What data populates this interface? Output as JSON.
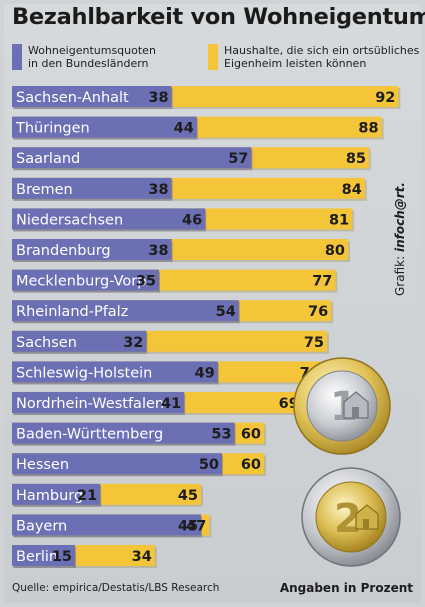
{
  "colors": {
    "blue": "#6b6fb4",
    "yellow": "#f4c538",
    "background": "#cfd3d6"
  },
  "title": "Bezahlbarkeit von Wohneigentum",
  "legend": [
    {
      "label": "Wohneigentumsquoten\nin den Bundesländern",
      "color": "#6b6fb4"
    },
    {
      "label": "Haushalte, die sich ein ortsübliches\nEigenheim leisten können",
      "color": "#f4c538"
    }
  ],
  "credit": {
    "prefix": "Grafik: ",
    "name": "infoch@rt."
  },
  "source": "Quelle: empirica/Destatis/LBS Research",
  "note": "Angaben in Prozent",
  "coins": {
    "one_label": "1",
    "two_label": "2"
  },
  "chart_data": {
    "type": "bar",
    "title": "Bezahlbarkeit von Wohneigentum",
    "categories": [
      "Sachsen-Anhalt",
      "Thüringen",
      "Saarland",
      "Bremen",
      "Niedersachsen",
      "Brandenburg",
      "Mecklenburg-Vorp.",
      "Rheinland-Pfalz",
      "Sachsen",
      "Schleswig-Holstein",
      "Nordrhein-Westfalen",
      "Baden-Württemberg",
      "Hessen",
      "Hamburg",
      "Bayern",
      "Berlin"
    ],
    "series": [
      {
        "name": "Wohneigentumsquoten in den Bundesländern",
        "values": [
          38,
          44,
          57,
          38,
          46,
          38,
          35,
          54,
          32,
          49,
          41,
          53,
          50,
          21,
          45,
          15
        ],
        "color": "#6b6fb4"
      },
      {
        "name": "Haushalte, die sich ein ortsübliches Eigenheim leisten können",
        "values": [
          92,
          88,
          85,
          84,
          81,
          80,
          77,
          76,
          75,
          74,
          69,
          60,
          60,
          45,
          47,
          34
        ],
        "color": "#f4c538"
      }
    ],
    "unit": "Prozent"
  }
}
